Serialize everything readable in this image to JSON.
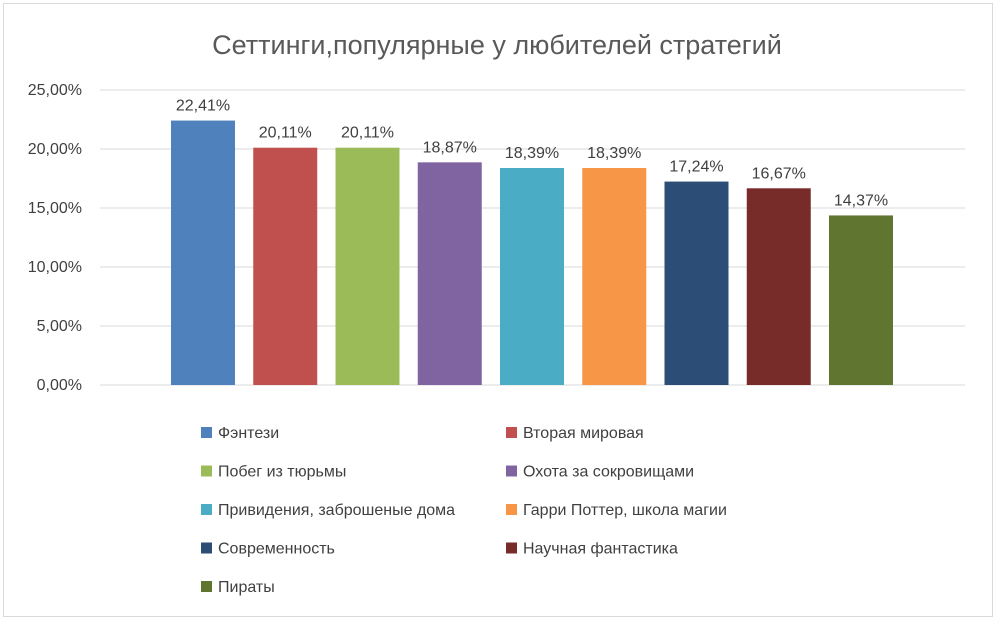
{
  "chart_data": {
    "type": "bar",
    "title": "Сеттинги,популярные у любителей стратегий",
    "xlabel": "",
    "ylabel": "",
    "ylim": [
      0,
      25
    ],
    "yticks": [
      "0,00%",
      "5,00%",
      "10,00%",
      "15,00%",
      "20,00%",
      "25,00%"
    ],
    "grid": true,
    "legend_position": "bottom",
    "series": [
      {
        "name": "Фэнтези",
        "value": 22.41,
        "label": "22,41%",
        "color": "#4f81bd"
      },
      {
        "name": "Вторая мировая",
        "value": 20.11,
        "label": "20,11%",
        "color": "#c0504d"
      },
      {
        "name": "Побег из тюрьмы",
        "value": 20.11,
        "label": "20,11%",
        "color": "#9bbb59"
      },
      {
        "name": "Охота за сокровищами",
        "value": 18.87,
        "label": "18,87%",
        "color": "#8064a2"
      },
      {
        "name": "Привидения, заброшеные дома",
        "value": 18.39,
        "label": "18,39%",
        "color": "#4bacc6"
      },
      {
        "name": "Гарри Поттер, школа магии",
        "value": 18.39,
        "label": "18,39%",
        "color": "#f79646"
      },
      {
        "name": "Современность",
        "value": 17.24,
        "label": "17,24%",
        "color": "#2c4d75"
      },
      {
        "name": "Научная фантастика",
        "value": 16.67,
        "label": "16,67%",
        "color": "#772c2a"
      },
      {
        "name": "Пираты",
        "value": 14.37,
        "label": "14,37%",
        "color": "#5f7530"
      }
    ]
  }
}
